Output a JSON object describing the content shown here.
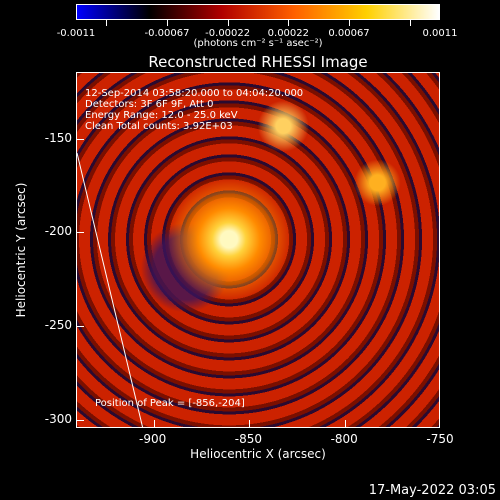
{
  "colorbar": {
    "tick_labels": [
      "-0.0011",
      "-0.00067",
      "-0.00022",
      "0.00022",
      "0.00067",
      "0.0011"
    ],
    "units": "(photons cm⁻² s⁻¹ asec⁻²)",
    "colors": [
      "#0000ff",
      "#000000",
      "#b00000",
      "#ff6000",
      "#ffd000",
      "#ffffff"
    ]
  },
  "title": "Reconstructed RHESSI Image",
  "info": {
    "time": "12-Sep-2014 03:58:20.000 to 04:04:20.000",
    "detectors": "Detectors: 3F 6F 9F, Att 0",
    "energy": "Energy Range: 12.0 - 25.0 keV",
    "clean": "Clean     Total counts: 3.92E+03",
    "peak": "Position of Peak = [-856,-204]"
  },
  "chart_data": {
    "type": "heatmap",
    "title": "Reconstructed RHESSI Image",
    "xlabel": "Heliocentric X (arcsec)",
    "ylabel": "Heliocentric Y (arcsec)",
    "xlim": [
      -940,
      -750
    ],
    "ylim": [
      -305,
      -115
    ],
    "x_ticks": [
      -900,
      -850,
      -800,
      -750
    ],
    "y_ticks": [
      -150,
      -200,
      -250,
      -300
    ],
    "x_tick_labels": [
      "-900",
      "-850",
      "-800",
      "-750"
    ],
    "y_tick_labels": [
      "-150",
      "-200",
      "-250",
      "-300"
    ],
    "peak": [
      -856,
      -204
    ],
    "colorbar_range": [
      -0.0011,
      0.0011
    ]
  },
  "footer": "17-May-2022 03:05"
}
